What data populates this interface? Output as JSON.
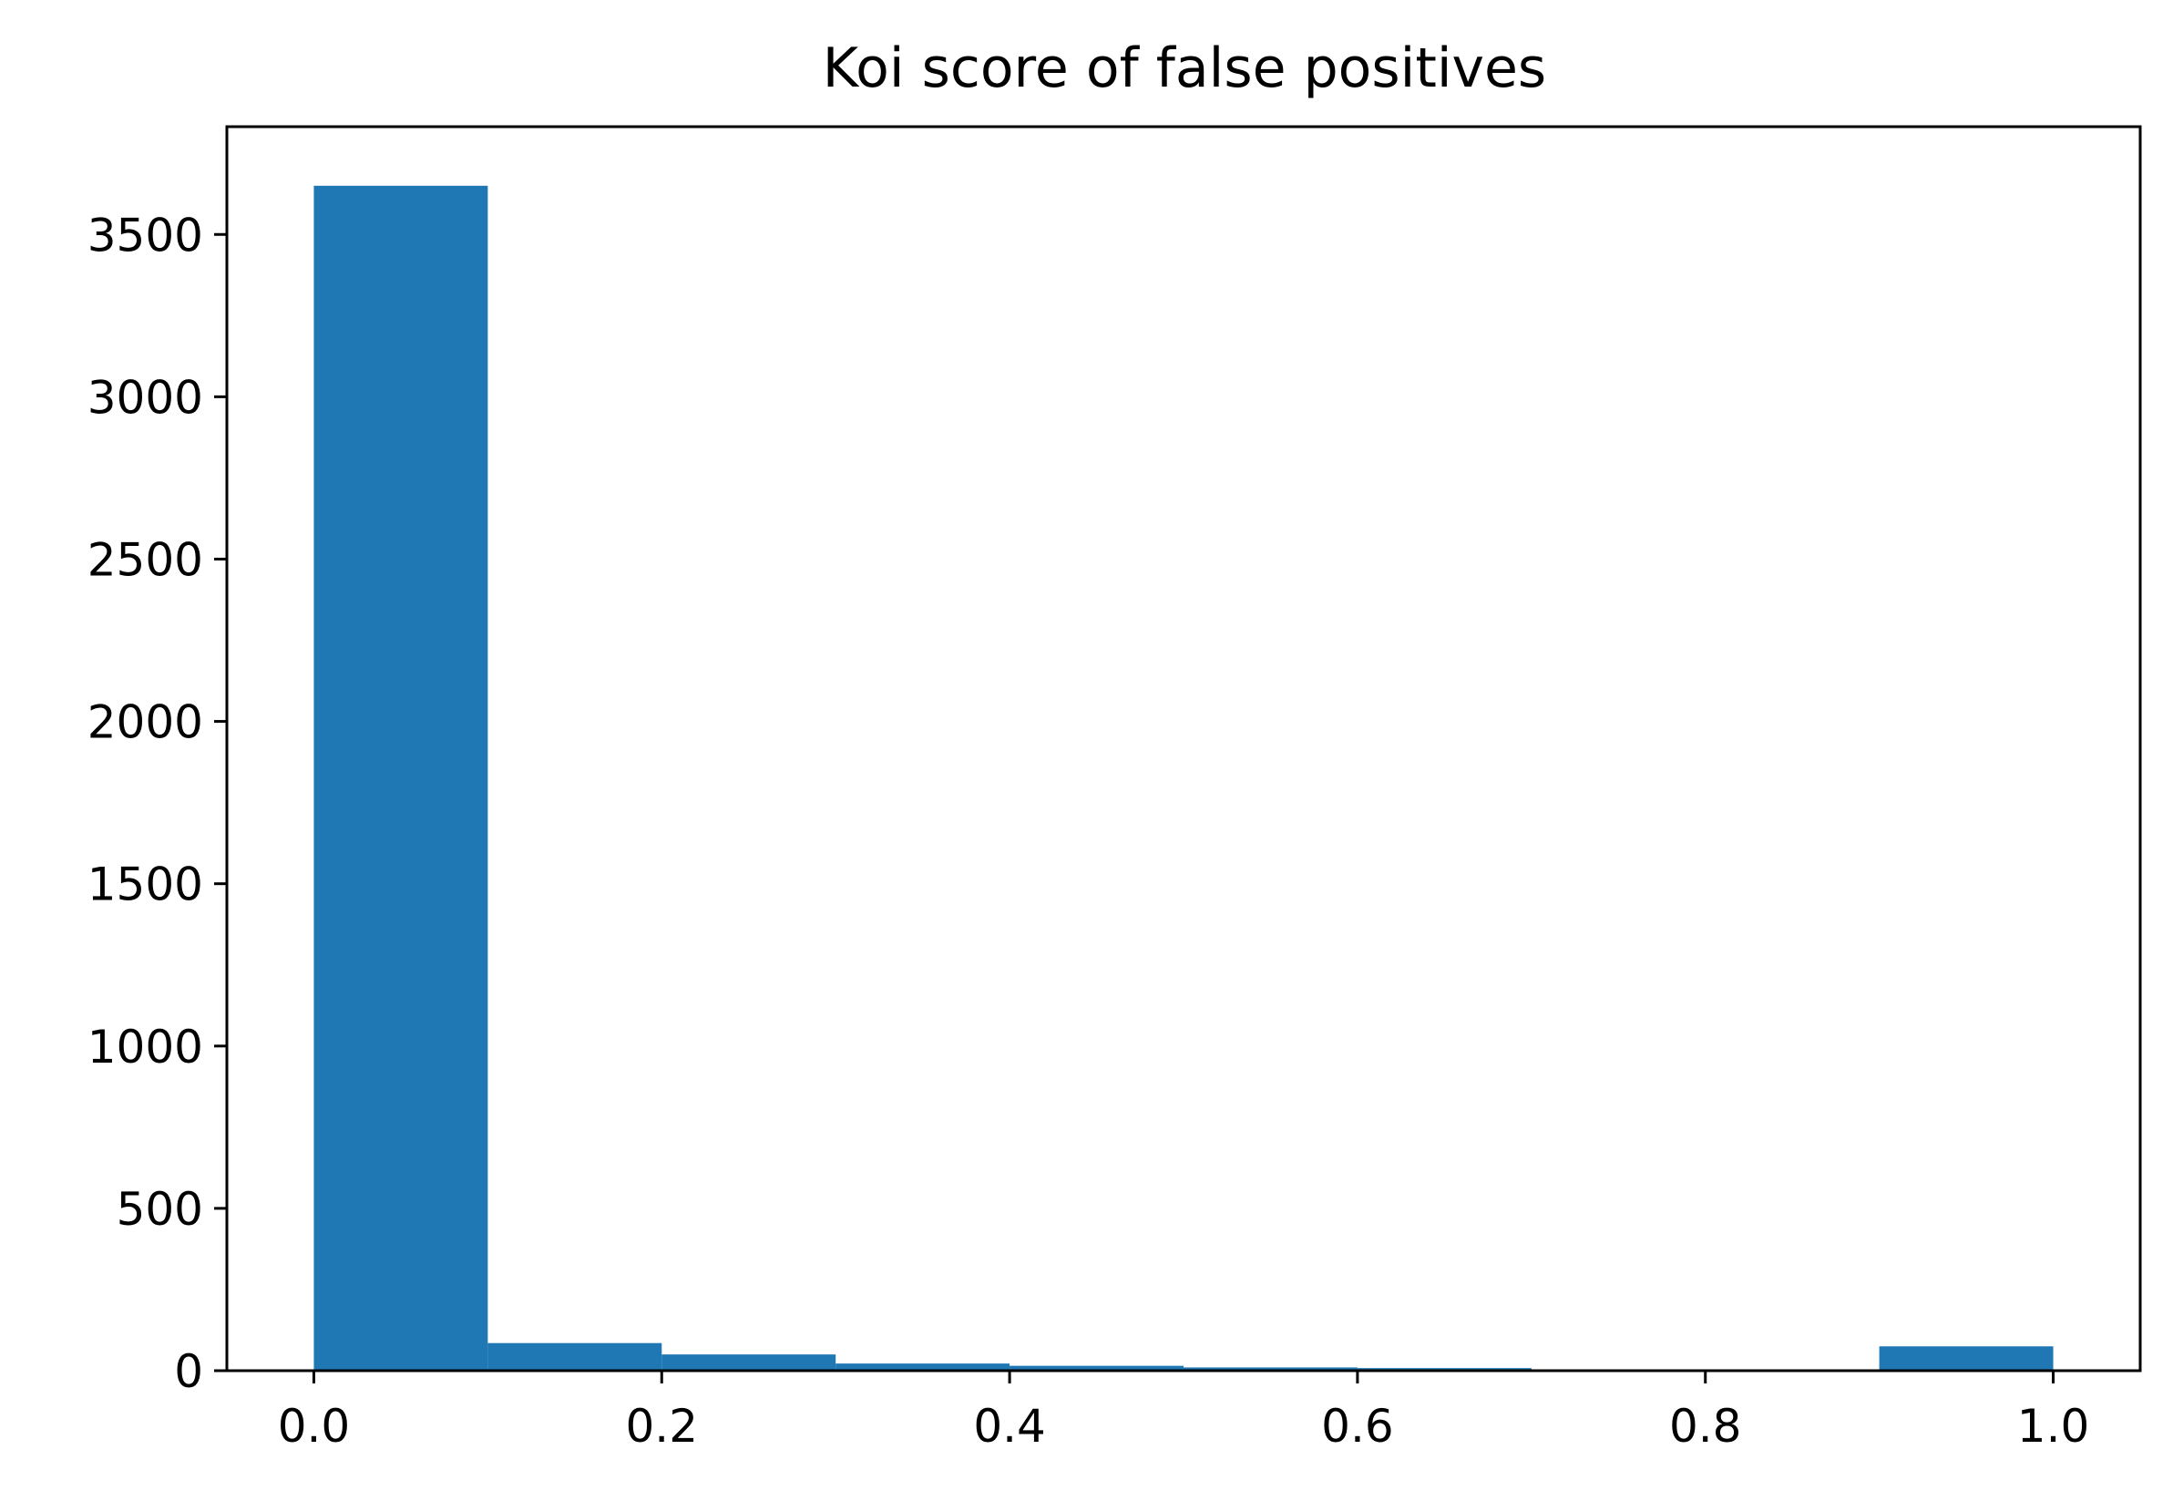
{
  "chart_data": {
    "type": "bar",
    "title": "Koi score of false positives",
    "xlabel": "",
    "ylabel": "",
    "bin_edges": [
      0.0,
      0.1,
      0.2,
      0.3,
      0.4,
      0.5,
      0.6,
      0.7,
      0.8,
      0.9,
      1.0
    ],
    "values": [
      3650,
      85,
      50,
      22,
      15,
      10,
      8,
      3,
      2,
      75
    ],
    "xlim": [
      -0.05,
      1.05
    ],
    "ylim": [
      0,
      3832
    ],
    "xticks": [
      "0.0",
      "0.2",
      "0.4",
      "0.6",
      "0.8",
      "1.0"
    ],
    "yticks": [
      "0",
      "500",
      "1000",
      "1500",
      "2000",
      "2500",
      "3000",
      "3500"
    ],
    "grid": false,
    "legend": "none",
    "bar_color": "#1f77b4"
  }
}
